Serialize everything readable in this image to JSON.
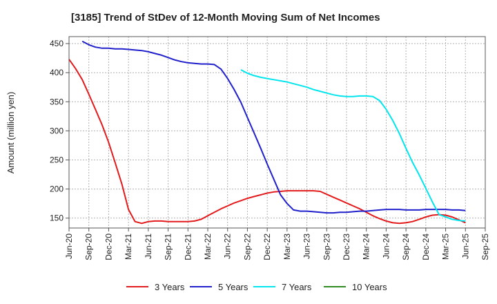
{
  "chart_data": {
    "type": "line",
    "title": "[3185]  Trend of StDev of 12-Month Moving Sum of Net Incomes",
    "ylabel": "Amount (million yen)",
    "xlabel": "",
    "ylim": [
      133,
      462
    ],
    "yticks": [
      150,
      200,
      250,
      300,
      350,
      400,
      450
    ],
    "categories": [
      "Jun-20",
      "Sep-20",
      "Dec-20",
      "Mar-21",
      "Jun-21",
      "Sep-21",
      "Dec-21",
      "Mar-22",
      "Jun-22",
      "Sep-22",
      "Dec-22",
      "Mar-23",
      "Jun-23",
      "Sep-23",
      "Dec-23",
      "Mar-24",
      "Jun-24",
      "Sep-24",
      "Dec-24",
      "Mar-25",
      "Jun-25",
      "Sep-25"
    ],
    "grid": true,
    "legend_position": "bottom",
    "series": [
      {
        "name": "3 Years",
        "color": "#e31a1c",
        "points": [
          [
            0,
            423
          ],
          [
            0.33,
            407
          ],
          [
            0.67,
            388
          ],
          [
            1,
            363
          ],
          [
            1.33,
            337
          ],
          [
            1.67,
            310
          ],
          [
            2,
            280
          ],
          [
            2.33,
            245
          ],
          [
            2.67,
            208
          ],
          [
            3,
            165
          ],
          [
            3.33,
            144
          ],
          [
            3.67,
            141
          ],
          [
            4,
            144
          ],
          [
            4.33,
            145
          ],
          [
            4.67,
            145
          ],
          [
            5,
            144
          ],
          [
            5.33,
            144
          ],
          [
            5.67,
            144
          ],
          [
            6,
            144
          ],
          [
            6.33,
            145
          ],
          [
            6.67,
            148
          ],
          [
            7,
            154
          ],
          [
            7.33,
            160
          ],
          [
            7.67,
            166
          ],
          [
            8,
            171
          ],
          [
            8.33,
            176
          ],
          [
            8.67,
            180
          ],
          [
            9,
            184
          ],
          [
            9.33,
            187
          ],
          [
            9.67,
            190
          ],
          [
            10,
            193
          ],
          [
            10.33,
            195
          ],
          [
            10.67,
            196
          ],
          [
            11,
            197
          ],
          [
            11.33,
            197
          ],
          [
            11.67,
            197
          ],
          [
            12,
            197
          ],
          [
            12.33,
            197
          ],
          [
            12.67,
            196
          ],
          [
            13,
            191
          ],
          [
            13.33,
            186
          ],
          [
            13.67,
            181
          ],
          [
            14,
            176
          ],
          [
            14.33,
            171
          ],
          [
            14.67,
            166
          ],
          [
            15,
            160
          ],
          [
            15.33,
            154
          ],
          [
            15.67,
            149
          ],
          [
            16,
            145
          ],
          [
            16.33,
            142
          ],
          [
            16.67,
            141
          ],
          [
            17,
            142
          ],
          [
            17.33,
            144
          ],
          [
            17.67,
            148
          ],
          [
            18,
            152
          ],
          [
            18.33,
            155
          ],
          [
            18.67,
            156
          ],
          [
            19,
            155
          ],
          [
            19.33,
            152
          ],
          [
            19.67,
            147
          ],
          [
            20,
            142
          ]
        ]
      },
      {
        "name": "5 Years",
        "color": "#1f1fcc",
        "points": [
          [
            0.67,
            454
          ],
          [
            1,
            448
          ],
          [
            1.33,
            444
          ],
          [
            1.67,
            442
          ],
          [
            2,
            442
          ],
          [
            2.33,
            441
          ],
          [
            2.67,
            441
          ],
          [
            3,
            440
          ],
          [
            3.33,
            439
          ],
          [
            3.67,
            438
          ],
          [
            4,
            436
          ],
          [
            4.33,
            433
          ],
          [
            4.67,
            430
          ],
          [
            5,
            426
          ],
          [
            5.33,
            422
          ],
          [
            5.67,
            419
          ],
          [
            6,
            417
          ],
          [
            6.33,
            416
          ],
          [
            6.67,
            415
          ],
          [
            7,
            415
          ],
          [
            7.33,
            414
          ],
          [
            7.67,
            406
          ],
          [
            8,
            390
          ],
          [
            8.33,
            371
          ],
          [
            8.67,
            349
          ],
          [
            9,
            323
          ],
          [
            9.33,
            297
          ],
          [
            9.67,
            270
          ],
          [
            10,
            243
          ],
          [
            10.33,
            217
          ],
          [
            10.67,
            190
          ],
          [
            11,
            175
          ],
          [
            11.33,
            164
          ],
          [
            11.67,
            162
          ],
          [
            12,
            162
          ],
          [
            12.33,
            161
          ],
          [
            12.67,
            160
          ],
          [
            13,
            159
          ],
          [
            13.33,
            159
          ],
          [
            13.67,
            160
          ],
          [
            14,
            160
          ],
          [
            14.33,
            161
          ],
          [
            14.67,
            162
          ],
          [
            15,
            162
          ],
          [
            15.33,
            163
          ],
          [
            15.67,
            164
          ],
          [
            16,
            165
          ],
          [
            16.33,
            165
          ],
          [
            16.67,
            165
          ],
          [
            17,
            164
          ],
          [
            17.33,
            164
          ],
          [
            17.67,
            164
          ],
          [
            18,
            165
          ],
          [
            18.33,
            165
          ],
          [
            18.67,
            165
          ],
          [
            19,
            165
          ],
          [
            19.33,
            164
          ],
          [
            19.67,
            164
          ],
          [
            20,
            163
          ]
        ]
      },
      {
        "name": "7 Years",
        "color": "#00e5ee",
        "points": [
          [
            8.67,
            405
          ],
          [
            9,
            399
          ],
          [
            9.33,
            395
          ],
          [
            9.67,
            392
          ],
          [
            10,
            390
          ],
          [
            10.33,
            388
          ],
          [
            10.67,
            386
          ],
          [
            11,
            384
          ],
          [
            11.33,
            381
          ],
          [
            11.67,
            378
          ],
          [
            12,
            375
          ],
          [
            12.33,
            371
          ],
          [
            12.67,
            368
          ],
          [
            13,
            365
          ],
          [
            13.33,
            362
          ],
          [
            13.67,
            360
          ],
          [
            14,
            359
          ],
          [
            14.33,
            359
          ],
          [
            14.67,
            360
          ],
          [
            15,
            360
          ],
          [
            15.33,
            359
          ],
          [
            15.67,
            352
          ],
          [
            16,
            337
          ],
          [
            16.33,
            318
          ],
          [
            16.67,
            295
          ],
          [
            17,
            270
          ],
          [
            17.33,
            246
          ],
          [
            17.67,
            224
          ],
          [
            18,
            201
          ],
          [
            18.33,
            178
          ],
          [
            18.67,
            156
          ],
          [
            19,
            152
          ],
          [
            19.33,
            148
          ],
          [
            19.67,
            146
          ],
          [
            20,
            145
          ]
        ]
      },
      {
        "name": "10 Years",
        "color": "#2e8b20",
        "points": []
      }
    ]
  }
}
